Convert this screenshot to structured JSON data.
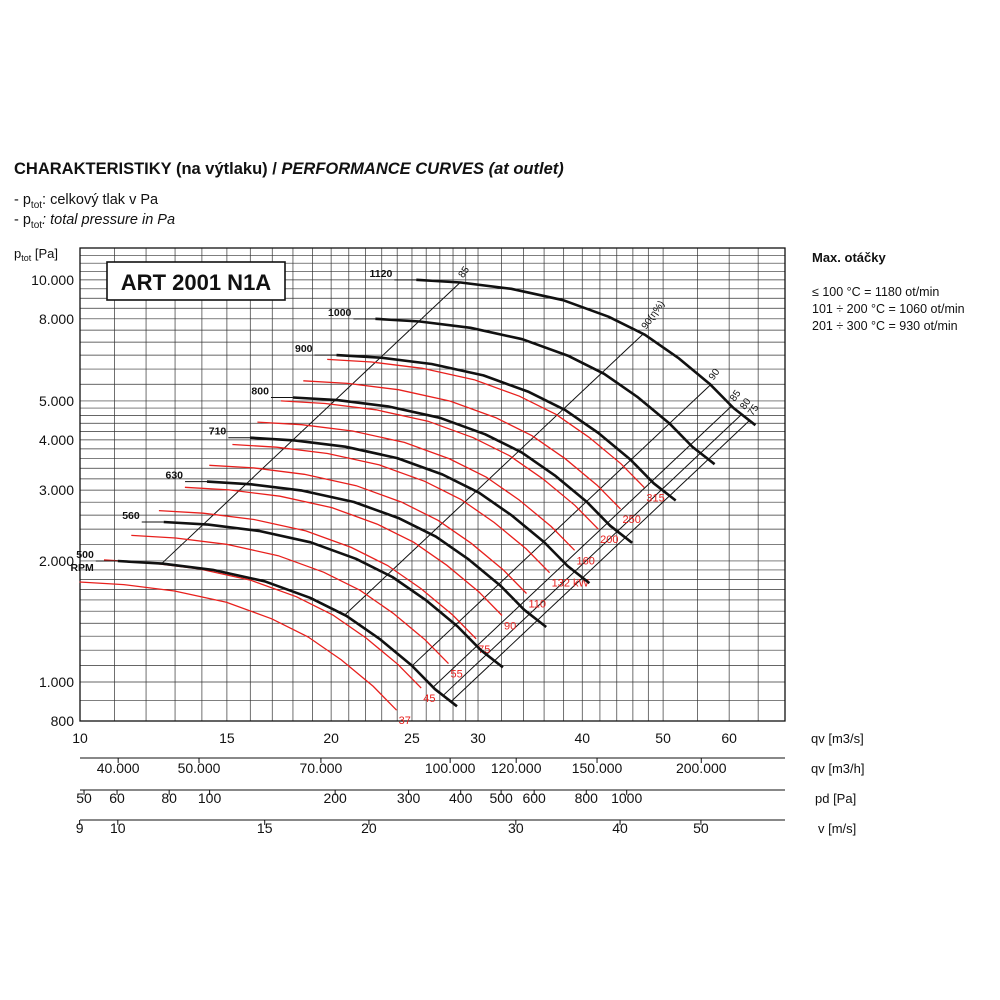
{
  "header": {
    "title_cz": "CHARAKTERISTIKY (na výtlaku) / ",
    "title_en": "PERFORMANCE CURVES (at outlet)",
    "legend_cz_prefix": "- p",
    "legend_cz_sub": "tot",
    "legend_cz_text": ": celkový tlak v Pa",
    "legend_en_prefix": "- p",
    "legend_en_sub": "tot",
    "legend_en_text": ": total pressure in Pa"
  },
  "max_speed": {
    "title": "Max. otáčky",
    "lines": [
      "≤ 100 °C = 1180 ot/min",
      "101 ÷ 200 °C = 1060 ot/min",
      "201 ÷ 300 °C = 930 ot/min"
    ]
  },
  "chart_data": {
    "type": "line",
    "title": "ART 2001 N1A",
    "xscale": "log",
    "yscale": "log",
    "xlim": [
      10,
      70
    ],
    "ylim": [
      800,
      12000
    ],
    "grid": true,
    "ylabel": "ptot [Pa]",
    "xlabel": "qv [m3/s]",
    "yticks": [
      {
        "v": 800,
        "label": "800"
      },
      {
        "v": 1000,
        "label": "1.000"
      },
      {
        "v": 2000,
        "label": "2.000"
      },
      {
        "v": 3000,
        "label": "3.000"
      },
      {
        "v": 4000,
        "label": "4.000"
      },
      {
        "v": 5000,
        "label": "5.000"
      },
      {
        "v": 8000,
        "label": "8.000"
      },
      {
        "v": 10000,
        "label": "10.000"
      }
    ],
    "xticks": [
      {
        "v": 10,
        "label": "10"
      },
      {
        "v": 15,
        "label": "15"
      },
      {
        "v": 20,
        "label": "20"
      },
      {
        "v": 25,
        "label": "25"
      },
      {
        "v": 30,
        "label": "30"
      },
      {
        "v": 40,
        "label": "40"
      },
      {
        "v": 50,
        "label": "50"
      },
      {
        "v": 60,
        "label": "60"
      }
    ],
    "axes2": [
      {
        "label": "qv [m3/h]",
        "factor": 3600,
        "ticks": [
          {
            "v": 40000,
            "label": "40.000"
          },
          {
            "v": 50000,
            "label": "50.000"
          },
          {
            "v": 70000,
            "label": "70.000"
          },
          {
            "v": 100000,
            "label": "100.000"
          },
          {
            "v": 120000,
            "label": "120.000"
          },
          {
            "v": 150000,
            "label": "150.000"
          },
          {
            "v": 200000,
            "label": "200.000"
          }
        ]
      },
      {
        "label": "pd [Pa]",
        "ticks": [
          {
            "v": 50,
            "label": "50"
          },
          {
            "v": 60,
            "label": "60"
          },
          {
            "v": 80,
            "label": "80"
          },
          {
            "v": 100,
            "label": "100"
          },
          {
            "v": 200,
            "label": "200"
          },
          {
            "v": 300,
            "label": "300"
          },
          {
            "v": 400,
            "label": "400"
          },
          {
            "v": 500,
            "label": "500"
          },
          {
            "v": 600,
            "label": "600"
          },
          {
            "v": 800,
            "label": "800"
          },
          {
            "v": 1000,
            "label": "1000"
          }
        ]
      },
      {
        "label": "v [m/s]",
        "ticks": [
          {
            "v": 9,
            "label": "9"
          },
          {
            "v": 10,
            "label": "10"
          },
          {
            "v": 15,
            "label": "15"
          },
          {
            "v": 20,
            "label": "20"
          },
          {
            "v": 30,
            "label": "30"
          },
          {
            "v": 40,
            "label": "40"
          },
          {
            "v": 50,
            "label": "50"
          }
        ]
      }
    ],
    "series": [
      {
        "name": "500",
        "unit": "RPM",
        "x0": 11.1,
        "p0": 2000
      },
      {
        "name": "560",
        "x0": 12.6,
        "p0": 2500
      },
      {
        "name": "630",
        "x0": 14.2,
        "p0": 3150
      },
      {
        "name": "710",
        "x0": 16.0,
        "p0": 4050
      },
      {
        "name": "800",
        "x0": 18.0,
        "p0": 5100
      },
      {
        "name": "900",
        "x0": 20.3,
        "p0": 6500
      },
      {
        "name": "1000",
        "x0": 22.6,
        "p0": 8000
      },
      {
        "name": "1120",
        "x0": 25.3,
        "p0": 10000
      }
    ],
    "power_labels": [
      "37",
      "45",
      "55",
      "75",
      "90",
      "110",
      "132 kW",
      "160",
      "200",
      "250",
      "315"
    ],
    "efficiency_labels": [
      "85",
      "90(η%)",
      "90",
      "85",
      "80",
      "75"
    ]
  }
}
